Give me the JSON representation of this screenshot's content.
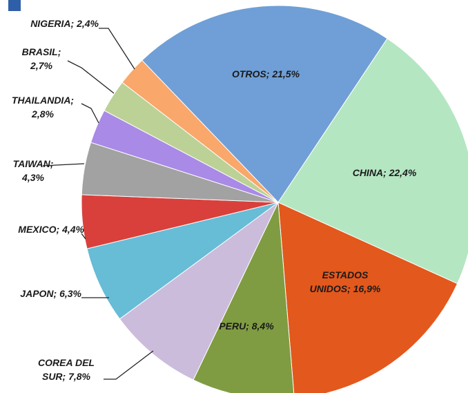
{
  "chart_data": {
    "type": "pie",
    "labels": [
      [
        "OTROS; 21,5%"
      ],
      [
        "CHINA; 22,4%"
      ],
      [
        "ESTADOS",
        "UNIDOS; 16,9%"
      ],
      [
        "PERU; 8,4%"
      ],
      [
        "COREA DEL",
        "SUR; 7,8%"
      ],
      [
        "JAPON; 6,3%"
      ],
      [
        "MEXICO; 4,4%"
      ],
      [
        "TAIWAN;",
        "4,3%"
      ],
      [
        "THAILANDIA;",
        "2,8%"
      ],
      [
        "BRASIL;",
        "2,7%"
      ],
      [
        "NIGERIA; 2,4%"
      ]
    ],
    "values": [
      21.5,
      22.4,
      16.9,
      8.4,
      7.8,
      6.3,
      4.4,
      4.3,
      2.8,
      2.7,
      2.4
    ],
    "colors": [
      "#6f9fd6",
      "#b4e6c2",
      "#e3581c",
      "#7f9c42",
      "#cbbcdc",
      "#67bcd6",
      "#d9403c",
      "#a2a2a2",
      "#a98ae6",
      "#bcd196",
      "#f9a76a"
    ]
  }
}
